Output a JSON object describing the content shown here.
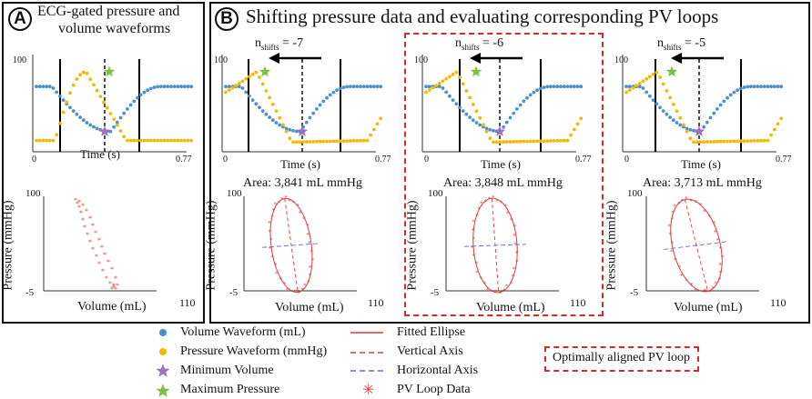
{
  "panel_a": {
    "badge": "A",
    "title_line1": "ECG-gated pressure and",
    "title_line2": "volume waveforms"
  },
  "panel_b": {
    "badge": "B",
    "title": "Shifting pressure data and evaluating corresponding PV loops"
  },
  "waveform_axes": {
    "y_max": "100",
    "x_min": "0",
    "x_max": "0.77",
    "xlabel": "Time (s)"
  },
  "pv_axes": {
    "y_max": "100",
    "y_min": "-5",
    "x_max": "110",
    "xlabel": "Volume (mL)",
    "ylabel": "Pressure (mmHg)"
  },
  "shifts": [
    {
      "label": "n",
      "sub": "shifts",
      "value": "= -7",
      "area": "Area: 3,841 mL mmHg"
    },
    {
      "label": "n",
      "sub": "shifts",
      "value": "= -6",
      "area": "Area: 3,848 mL mmHg"
    },
    {
      "label": "n",
      "sub": "shifts",
      "value": "= -5",
      "area": "Area: 3,713 mL mmHg"
    }
  ],
  "legend": {
    "volume_waveform": "Volume Waveform (mL)",
    "pressure_waveform": "Pressure Waveform (mmHg)",
    "minimum_volume": "Minimum Volume",
    "maximum_pressure": "Maximum Pressure",
    "fitted_ellipse": "Fitted Ellipse",
    "vertical_axis": "Vertical Axis",
    "horizontal_axis": "Horizontal Axis",
    "pv_loop_data": "PV Loop Data",
    "optimal_box": "Optimally aligned PV loop"
  },
  "colors": {
    "volume": "#4a90cf",
    "pressure": "#f5b800",
    "min_volume": "#a070c0",
    "max_pressure": "#7cc040",
    "pv_red": "#e03a3a",
    "horizontal_axis": "#6a6ab8",
    "highlight": "#d42a2a"
  }
}
